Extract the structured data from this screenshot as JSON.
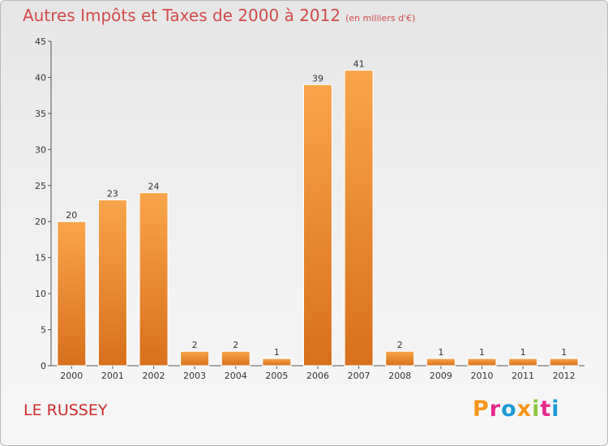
{
  "header": {
    "title": "Autres Impôts et Taxes de 2000 à 2012",
    "unit": "(en milliers d'€)"
  },
  "footer": {
    "commune": "LE RUSSEY",
    "logo_letters": [
      "P",
      "r",
      "o",
      "x",
      "i",
      "t",
      "i"
    ],
    "logo_colors": [
      "#f7941d",
      "#e8298c",
      "#1c9ad6",
      "#f7941d",
      "#8cc63e",
      "#e8298c",
      "#1c9ad6"
    ]
  },
  "colors": {
    "bar_light": "#f9a54b",
    "bar_dark": "#d8701c",
    "title": "#d24a4a",
    "commune": "#cc2a2a"
  },
  "chart_data": {
    "type": "bar",
    "title": "Autres Impôts et Taxes de 2000 à 2012",
    "unit": "(en milliers d'€)",
    "categories": [
      "2000",
      "2001",
      "2002",
      "2003",
      "2004",
      "2005",
      "2006",
      "2007",
      "2008",
      "2009",
      "2010",
      "2011",
      "2012"
    ],
    "values": [
      20,
      23,
      24,
      2,
      2,
      1,
      39,
      41,
      2,
      1,
      1,
      1,
      1
    ],
    "ylim": [
      0,
      45
    ],
    "yticks": [
      0,
      5,
      10,
      15,
      20,
      25,
      30,
      35,
      40,
      45
    ],
    "grid": false,
    "legend": "none"
  }
}
